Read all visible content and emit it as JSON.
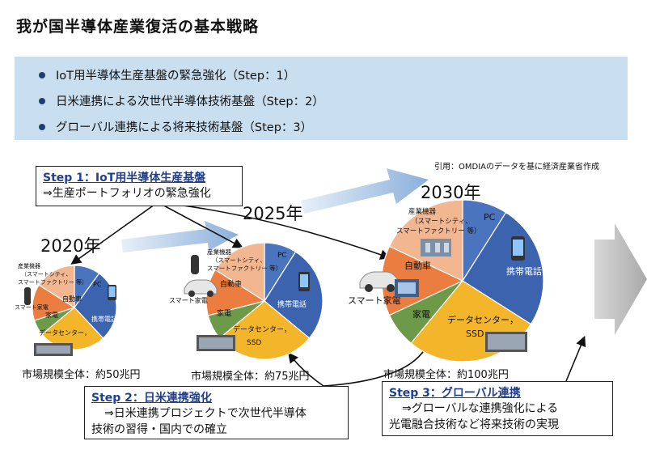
{
  "title": "我が国半導体産業復活の基本戦略",
  "bullets": [
    "IoT用半導体生産基盤の緊急強化（Step：1）",
    "日米連携による次世代半導体技術基盤（Step：2）",
    "グローバル連携による将来技術基盤（Step：3）"
  ],
  "citation": "引用：OMDIAのデータを基に経済産業省作成",
  "colors": {
    "pc": "#4a74bd",
    "mobile": "#3b63ae",
    "datacenter": "#f3b52a",
    "appliance": "#6d9a49",
    "auto": "#ea7d3f",
    "industry": "#f2b690",
    "arrow": "#8fb3dc",
    "bullet_box": "#c9dff0"
  },
  "stages": [
    {
      "year": "2020年",
      "market": "市場規模全体：約50兆円",
      "labels": {
        "pc": "PC",
        "mobile": "携帯電話",
        "datacenter": "データセンター，",
        "appliance": "家電",
        "auto": "自動車",
        "industry_1": "産業機器",
        "industry_2": "（スマートシティ、",
        "industry_3": "スマートファクトリー 等）",
        "smart_appliance": "スマート家電"
      }
    },
    {
      "year": "2025年",
      "market": "市場規模全体：約75兆円",
      "labels": {
        "pc": "PC",
        "mobile": "携帯電話",
        "datacenter": "データセンター，",
        "datacenter_2": "SSD",
        "appliance": "家電",
        "auto": "自動車",
        "industry_1": "産業機器",
        "industry_2": "（スマートシティ、",
        "industry_3": "スマートファクトリー 等）",
        "smart_appliance": "スマート家電"
      }
    },
    {
      "year": "2030年",
      "market": "市場規模全体：約100兆円",
      "labels": {
        "pc": "PC",
        "mobile": "携帯電話",
        "datacenter": "データセンター，",
        "datacenter_2": "SSD",
        "appliance": "家電",
        "auto": "自動車",
        "industry_1": "産業機器",
        "industry_2": "（スマートシティ、",
        "industry_3": "スマートファクトリー 等）",
        "smart_appliance": "スマート家電"
      }
    }
  ],
  "steps": [
    {
      "title": "Step 1：IoT用半導体生産基盤",
      "lines": [
        "⇒生産ポートフォリオの緊急強化"
      ]
    },
    {
      "title": "Step 2：日米連携強化",
      "lines": [
        "⇒日米連携プロジェクトで次世代半導体",
        "技術の習得・国内での確立"
      ]
    },
    {
      "title": "Step 3：グローバル連携",
      "lines": [
        "⇒グローバルな連携強化による",
        "光電融合技術など将来技術の実現"
      ]
    }
  ]
}
